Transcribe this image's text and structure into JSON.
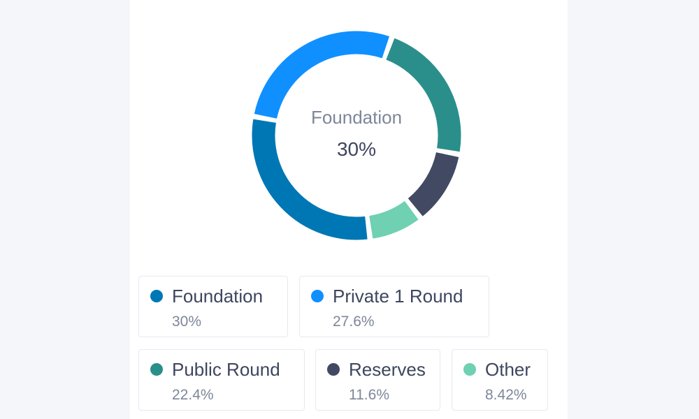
{
  "chart_data": {
    "type": "pie",
    "variant": "donut",
    "center": {
      "label": "Foundation",
      "value": "30%"
    },
    "slices": [
      {
        "name": "Foundation",
        "value": 30,
        "label": "30%",
        "color": "#0077b5"
      },
      {
        "name": "Private 1 Round",
        "value": 27.6,
        "label": "27.6%",
        "color": "#1090ff"
      },
      {
        "name": "Public Round",
        "value": 22.4,
        "label": "22.4%",
        "color": "#2a8f8b"
      },
      {
        "name": "Reserves",
        "value": 11.6,
        "label": "11.6%",
        "color": "#424962"
      },
      {
        "name": "Other",
        "value": 8.42,
        "label": "8.42%",
        "color": "#6fd0b2"
      }
    ],
    "legend_placement": "bottom"
  }
}
